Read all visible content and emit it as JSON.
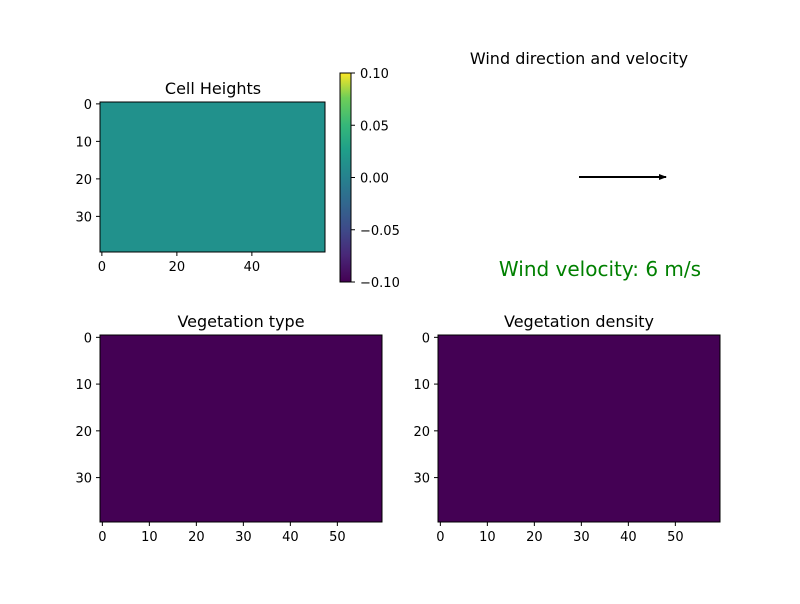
{
  "chart_data": [
    {
      "type": "heatmap",
      "title": "Cell Heights",
      "xticks": [
        0,
        20,
        40
      ],
      "yticks": [
        0,
        10,
        20,
        30
      ],
      "xlim": [
        0,
        60
      ],
      "ylim": [
        40,
        0
      ],
      "fill_color": "#21918c",
      "colorbar": {
        "ticks": [
          "0.10",
          "0.05",
          "0.00",
          "−0.05",
          "−0.10"
        ],
        "range": [
          -0.1,
          0.1
        ]
      }
    },
    {
      "type": "quiver",
      "title": "Wind direction and velocity",
      "vector": {
        "dx": 1,
        "dy": 0
      },
      "annotation": "Wind velocity: 6 m/s",
      "annotation_color": "#008000"
    },
    {
      "type": "heatmap",
      "title": "Vegetation type",
      "xticks": [
        0,
        10,
        20,
        30,
        40,
        50
      ],
      "yticks": [
        0,
        10,
        20,
        30
      ],
      "xlim": [
        0,
        60
      ],
      "ylim": [
        40,
        0
      ],
      "fill_color": "#440154"
    },
    {
      "type": "heatmap",
      "title": "Vegetation density",
      "xticks": [
        0,
        10,
        20,
        30,
        40,
        50
      ],
      "yticks": [
        0,
        10,
        20,
        30
      ],
      "xlim": [
        0,
        60
      ],
      "ylim": [
        40,
        0
      ],
      "fill_color": "#440154"
    }
  ]
}
